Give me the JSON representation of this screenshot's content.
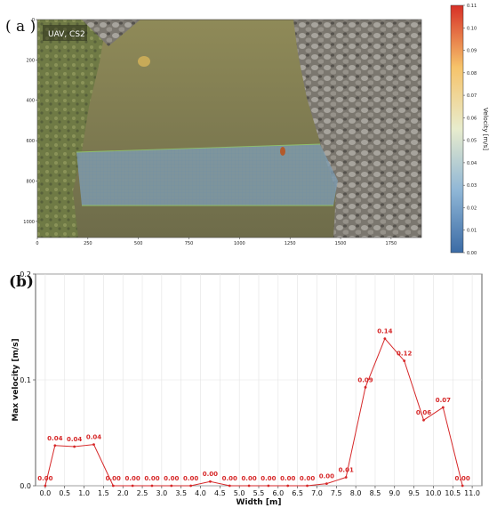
{
  "panel_a": {
    "label": "( a )",
    "inset_text": "UAV, CS2",
    "x_ticks": [
      "0",
      "250",
      "500",
      "750",
      "1000",
      "1250",
      "1500",
      "1750"
    ],
    "y_ticks": [
      "0",
      "200",
      "400",
      "600",
      "800",
      "1000"
    ],
    "colorbar": {
      "label": "Velocity [m/s]",
      "ticks": [
        "0.00",
        "0.01",
        "0.02",
        "0.03",
        "0.04",
        "0.05",
        "0.06",
        "0.07",
        "0.08",
        "0.09",
        "0.10",
        "0.11"
      ],
      "range": [
        0,
        0.11
      ],
      "colors": [
        "#3b6ba5",
        "#8fb6d6",
        "#e8eccd",
        "#f6c36a",
        "#d73027"
      ]
    },
    "colors": {
      "water": "#8f8a58",
      "grass": "#6f7a45",
      "rocks": "#8e8a84",
      "band": "#7f9cb0"
    }
  },
  "panel_b": {
    "label": "(b)"
  },
  "chart_data": {
    "type": "line",
    "xlabel": "Width [m]",
    "ylabel": "Max velocity [m/s]",
    "xlim": [
      -0.25,
      11.25
    ],
    "ylim": [
      0,
      0.2
    ],
    "x_ticks": [
      "0.0",
      "0.5",
      "1.0",
      "1.5",
      "2.0",
      "2.5",
      "3.0",
      "3.5",
      "4.0",
      "4.5",
      "5.0",
      "5.5",
      "6.0",
      "6.5",
      "7.0",
      "7.5",
      "8.0",
      "8.5",
      "9.0",
      "9.5",
      "10.0",
      "10.5",
      "11.0"
    ],
    "y_ticks": [
      "0.0",
      "0.1",
      "0.2"
    ],
    "grid": true,
    "color": "#d62728",
    "x": [
      0.0,
      0.25,
      0.75,
      1.25,
      1.75,
      2.25,
      2.75,
      3.25,
      3.75,
      4.25,
      4.75,
      5.25,
      5.75,
      6.25,
      6.75,
      7.25,
      7.75,
      8.25,
      8.75,
      9.25,
      9.75,
      10.25,
      10.75
    ],
    "y": [
      0.0,
      0.038,
      0.037,
      0.039,
      0.0,
      0.0,
      0.0,
      0.0,
      0.0,
      0.004,
      0.0,
      0.0,
      0.0,
      0.0,
      0.0,
      0.002,
      0.008,
      0.093,
      0.139,
      0.118,
      0.062,
      0.074,
      0.0
    ],
    "labels": [
      "0.00",
      "0.04",
      "0.04",
      "0.04",
      "0.00",
      "0.00",
      "0.00",
      "0.00",
      "0.00",
      "0.00",
      "0.00",
      "0.00",
      "0.00",
      "0.00",
      "0.00",
      "0.00",
      "0.01",
      "0.09",
      "0.14",
      "0.12",
      "0.06",
      "0.07",
      "0.00"
    ]
  }
}
